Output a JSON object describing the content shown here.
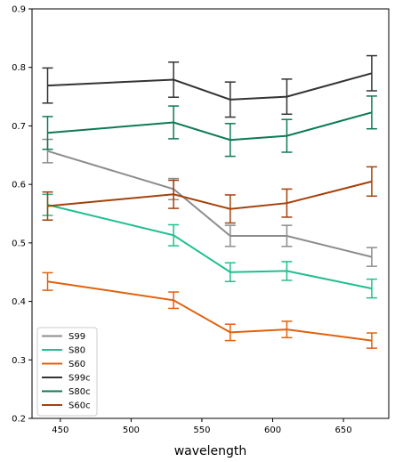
{
  "chart_data": {
    "type": "line",
    "xlabel": "wavelength",
    "ylabel": "",
    "xlim": [
      430,
      682
    ],
    "ylim": [
      0.2,
      0.9
    ],
    "xticks": [
      450,
      500,
      550,
      600,
      650
    ],
    "yticks": [
      0.2,
      0.3,
      0.4,
      0.5,
      0.6,
      0.7,
      0.8,
      0.9
    ],
    "grid": false,
    "legend_location": "lower-left",
    "x": [
      441,
      530,
      570,
      610,
      670
    ],
    "series": [
      {
        "name": "S99",
        "color": "#8c8c8c",
        "values": [
          0.657,
          0.592,
          0.512,
          0.512,
          0.476
        ],
        "errors": [
          0.02,
          0.018,
          0.018,
          0.018,
          0.016
        ]
      },
      {
        "name": "S80",
        "color": "#1fbf8f",
        "values": [
          0.565,
          0.513,
          0.45,
          0.452,
          0.422
        ],
        "errors": [
          0.018,
          0.018,
          0.016,
          0.016,
          0.016
        ]
      },
      {
        "name": "S60",
        "color": "#e0610e",
        "values": [
          0.434,
          0.402,
          0.347,
          0.352,
          0.333
        ],
        "errors": [
          0.015,
          0.014,
          0.014,
          0.014,
          0.013
        ]
      },
      {
        "name": "S99c",
        "color": "#333333",
        "values": [
          0.769,
          0.779,
          0.745,
          0.75,
          0.79
        ],
        "errors": [
          0.03,
          0.03,
          0.03,
          0.03,
          0.03
        ]
      },
      {
        "name": "S80c",
        "color": "#0d7a55",
        "values": [
          0.688,
          0.706,
          0.676,
          0.683,
          0.723
        ],
        "errors": [
          0.028,
          0.028,
          0.028,
          0.028,
          0.028
        ]
      },
      {
        "name": "S60c",
        "color": "#a4410b",
        "values": [
          0.563,
          0.583,
          0.558,
          0.568,
          0.605
        ],
        "errors": [
          0.024,
          0.024,
          0.024,
          0.024,
          0.025
        ]
      }
    ]
  }
}
